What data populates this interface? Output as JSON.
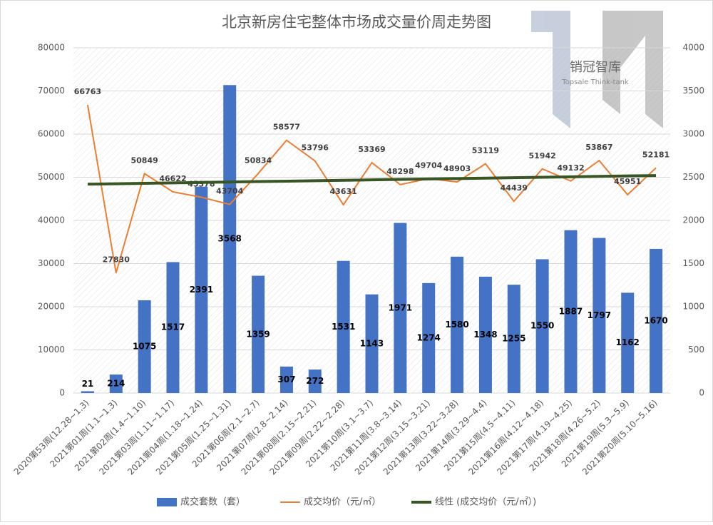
{
  "chart_data": {
    "type": "combo",
    "title": "北京新房住宅整体市场成交量价周走势图",
    "watermark": "销冠智库",
    "watermark_sub": "Topsale Think-tank",
    "categories": [
      "2020第53周(12.28~1.3)",
      "2021第01周(1.1~1.3)",
      "2021第02周(1.4~1.10)",
      "2021第03周(1.11~1.17)",
      "2021第04周(1.18~1.24)",
      "2021第05周(1.25~1.31)",
      "2021第06周(2.1~2.7)",
      "2021第07周(2.8~2.14)",
      "2021第08周(2.15~2.21)",
      "2021第09周(2.22~2.28)",
      "2021第10周(3.1~3.7)",
      "2021第11周(3.8~3.14)",
      "2021第12周(3.15~3.21)",
      "2021第13周(3.22~3.28)",
      "2021第14周(3.29~4.4)",
      "2021第15周(4.5~4.11)",
      "2021第16周(4.12~4.18)",
      "2021第17周(4.19~4.25)",
      "2021第18周(4.26~5.2)",
      "2021第19周(5.3~5.9)",
      "2021第20周(5.10~5.16)"
    ],
    "series": [
      {
        "name": "成交套数（套）",
        "type": "bar",
        "axis": "y2",
        "color": "#4472c4",
        "values": [
          21,
          214,
          1075,
          1517,
          2391,
          3568,
          1359,
          307,
          272,
          1531,
          1143,
          1971,
          1274,
          1580,
          1348,
          1255,
          1550,
          1887,
          1797,
          1162,
          1670
        ]
      },
      {
        "name": "成交均价（元/㎡）",
        "type": "line",
        "color": "#ed7d31",
        "values": [
          66763,
          27830,
          50849,
          46622,
          45378,
          43704,
          50834,
          58577,
          53796,
          43631,
          53369,
          48298,
          49704,
          48903,
          53119,
          44439,
          51942,
          49132,
          53867,
          45951,
          52181
        ]
      },
      {
        "name": "线性 (成交均价（元/㎡）)",
        "type": "trend",
        "color": "#375623",
        "values": [
          48400,
          48500,
          48600,
          48700,
          48800,
          48900,
          49000,
          49100,
          49200,
          49300,
          49400,
          49500,
          49600,
          49700,
          49800,
          49900,
          50000,
          50100,
          50200,
          50300,
          50400
        ]
      }
    ],
    "ylim": [
      0,
      80000
    ],
    "yticks": [
      0,
      10000,
      20000,
      30000,
      40000,
      50000,
      60000,
      70000,
      80000
    ],
    "y2lim": [
      0,
      4000
    ],
    "y2ticks": [
      0,
      500,
      1000,
      1500,
      2000,
      2500,
      3000,
      3500,
      4000
    ],
    "grid": true
  }
}
